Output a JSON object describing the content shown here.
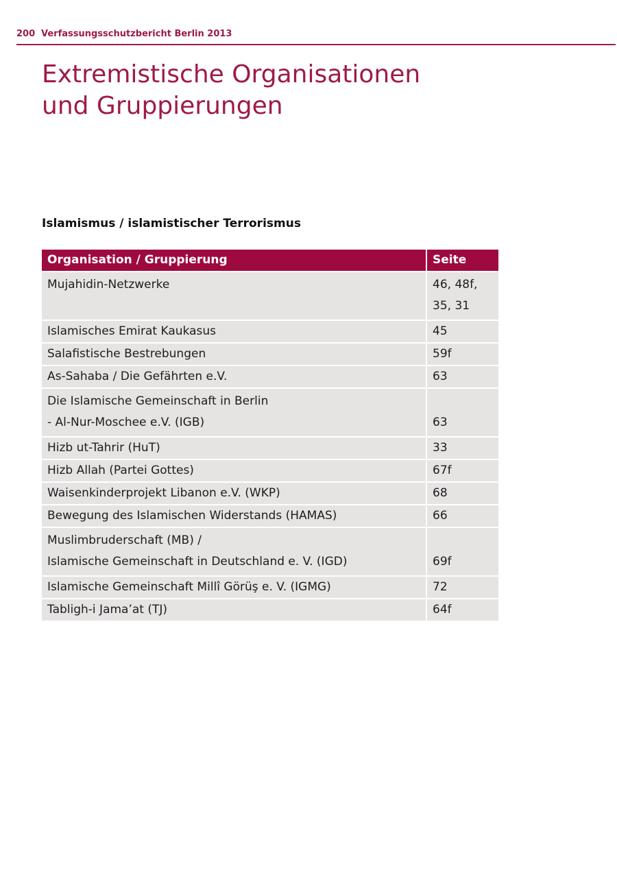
{
  "header": {
    "page_number": "200",
    "running_title": "Verfassungsschutzbericht Berlin 2013"
  },
  "title": {
    "line1": "Extremistische Organisationen",
    "line2": "und Gruppierungen"
  },
  "section": {
    "heading": "Islamismus / islamistischer Terrorismus"
  },
  "colors": {
    "accent": "#9e1b45",
    "table_header_bg": "#9e0a3f",
    "row_bg": "#e6e3e3"
  },
  "table": {
    "headers": {
      "organisation": "Organisation / Gruppierung",
      "page": "Seite"
    },
    "rows": [
      {
        "org_lines": [
          "Mujahidin-Netzwerke"
        ],
        "page_lines": [
          "46, 48f,",
          "35, 31"
        ],
        "page_align": "top"
      },
      {
        "org_lines": [
          "Islamisches Emirat Kaukasus"
        ],
        "page_lines": [
          "45"
        ],
        "page_align": "top"
      },
      {
        "org_lines": [
          "Salafistische Bestrebungen"
        ],
        "page_lines": [
          "59f"
        ],
        "page_align": "top"
      },
      {
        "org_lines": [
          "As-Sahaba / Die Gefährten e.V."
        ],
        "page_lines": [
          "63"
        ],
        "page_align": "top"
      },
      {
        "org_lines": [
          "Die Islamische Gemeinschaft in Berlin",
          "- Al-Nur-Moschee e.V. (IGB)"
        ],
        "page_lines": [
          "63"
        ],
        "page_align": "bottom"
      },
      {
        "org_lines": [
          "Hizb ut-Tahrir (HuT)"
        ],
        "page_lines": [
          "33"
        ],
        "page_align": "top"
      },
      {
        "org_lines": [
          "Hizb Allah (Partei Gottes)"
        ],
        "page_lines": [
          "67f"
        ],
        "page_align": "top"
      },
      {
        "org_lines": [
          "Waisenkinderprojekt Libanon e.V. (WKP)"
        ],
        "page_lines": [
          "68"
        ],
        "page_align": "top"
      },
      {
        "org_lines": [
          "Bewegung des Islamischen Widerstands (HAMAS)"
        ],
        "page_lines": [
          "66"
        ],
        "page_align": "top"
      },
      {
        "org_lines": [
          "Muslimbruderschaft (MB) /",
          "Islamische Gemeinschaft in Deutschland e. V. (IGD)"
        ],
        "page_lines": [
          "69f"
        ],
        "page_align": "bottom"
      },
      {
        "org_lines": [
          "Islamische Gemeinschaft Millî Görüş e. V. (IGMG)"
        ],
        "page_lines": [
          "72"
        ],
        "page_align": "top"
      },
      {
        "org_lines": [
          "Tabligh-i Jama’at (TJ)"
        ],
        "page_lines": [
          "64f"
        ],
        "page_align": "top"
      }
    ]
  }
}
